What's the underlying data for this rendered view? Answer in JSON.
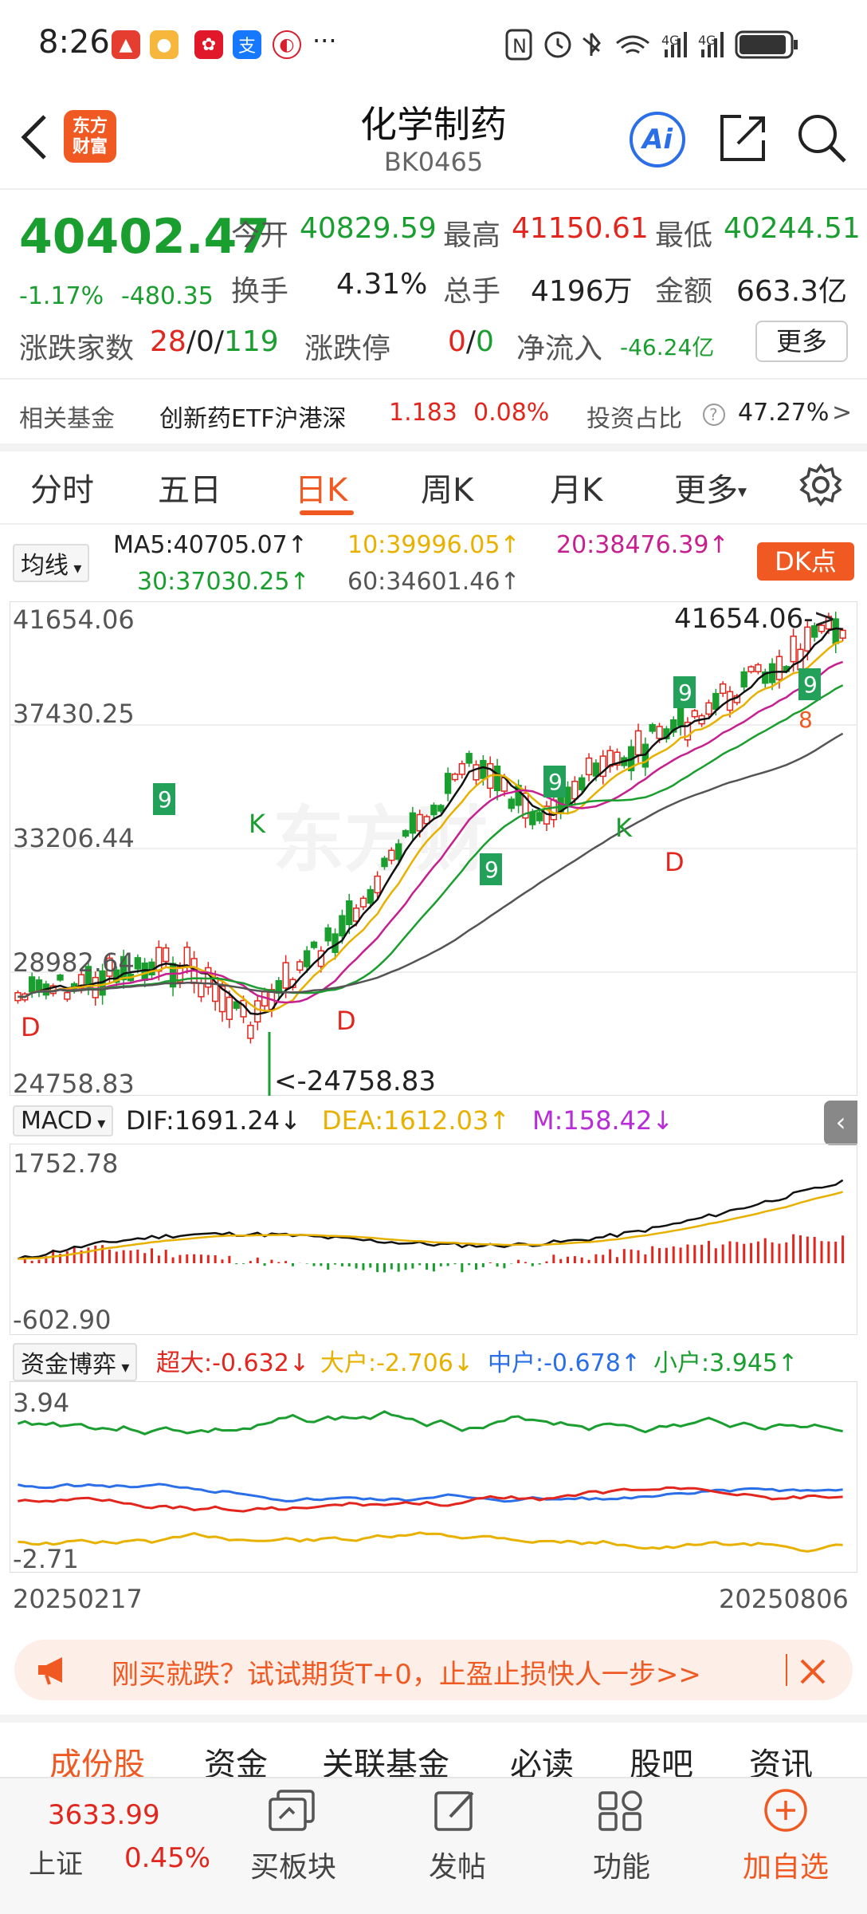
{
  "status_bar": {
    "time": "8:26",
    "network_1": "4G",
    "network_2": "4G",
    "more": "···"
  },
  "header": {
    "title": "化学制药",
    "code": "BK0465",
    "logo_line1": "东方",
    "logo_line2": "财富",
    "ai_label": "Ai"
  },
  "quote": {
    "price": "40402.47",
    "change_pct": "-1.17%",
    "change": "-480.35",
    "open_label": "今开",
    "open": "40829.59",
    "high_label": "最高",
    "high": "41150.61",
    "low_label": "最低",
    "low": "40244.51",
    "turnover_label": "换手",
    "turnover": "4.31%",
    "volume_label": "总手",
    "volume": "4196万",
    "amount_label": "金额",
    "amount": "663.3亿",
    "adv_label": "涨跌家数",
    "adv_up": "28",
    "adv_flat": "/0/",
    "adv_down": "119",
    "limit_label": "涨跌停",
    "limit_up": "0",
    "limit_sep": "/",
    "limit_down": "0",
    "inflow_label": "净流入",
    "inflow": "-46.24亿",
    "more_label": "更多"
  },
  "fund": {
    "label": "相关基金",
    "name": "创新药ETF沪港深",
    "price": "1.183",
    "pct": "0.08%",
    "ratio_label": "投资占比",
    "ratio": "47.27%",
    "arrow": ">"
  },
  "tabs": [
    "分时",
    "五日",
    "日K",
    "周K",
    "月K",
    "更多"
  ],
  "active_tab": "日K",
  "ma": {
    "selector": "均线",
    "ma5": "MA5:40705.07↑",
    "ma10": "10:39996.05↑",
    "ma20": "20:38476.39↑",
    "ma30": "30:37030.25↑",
    "ma60": "60:34601.46↑",
    "dk_label": "DK点"
  },
  "kline": {
    "y_labels": [
      "41654.06",
      "37430.25",
      "33206.44",
      "28982.64",
      "24758.83"
    ],
    "max_callout": "41654.06->",
    "min_callout": "<-24758.83",
    "signals": [
      "K",
      "K",
      "D",
      "D",
      "D"
    ],
    "seq_marks": [
      "9",
      "9",
      "9",
      "9",
      "9",
      "8"
    ],
    "watermark": "东方财"
  },
  "macd": {
    "selector": "MACD",
    "dif": "DIF:1691.24↓",
    "dea": "DEA:1612.03↑",
    "m": "M:158.42↓",
    "y_max": "1752.78",
    "y_min": "-602.90"
  },
  "flow": {
    "selector": "资金博弈",
    "super": "超大:-0.632↓",
    "big": "大户:-2.706↓",
    "mid": "中户:-0.678↑",
    "small": "小户:3.945↑",
    "y_max": "3.94",
    "y_min": "-2.71"
  },
  "dates": {
    "start": "20250217",
    "end": "20250806"
  },
  "banner": {
    "text": "刚买就跌？试试期货T+0，止盈止损快人一步>>"
  },
  "bottom_tabs": [
    "成份股",
    "资金",
    "关联基金",
    "必读",
    "股吧",
    "资讯"
  ],
  "nav": {
    "index_price": "3633.99",
    "index_name": "上证",
    "index_pct": "0.45%",
    "items": [
      "买板块",
      "发帖",
      "功能",
      "加自选"
    ]
  },
  "colors": {
    "accent": "#f05a22",
    "up": "#e2261d",
    "down": "#1a9e2f",
    "ma10": "#e8b100",
    "ma20": "#c71f8f",
    "ma30": "#1a9e2f",
    "ma60": "#555555",
    "dea": "#e8b100",
    "m": "#b82bd8",
    "mid": "#2a6ee8"
  }
}
